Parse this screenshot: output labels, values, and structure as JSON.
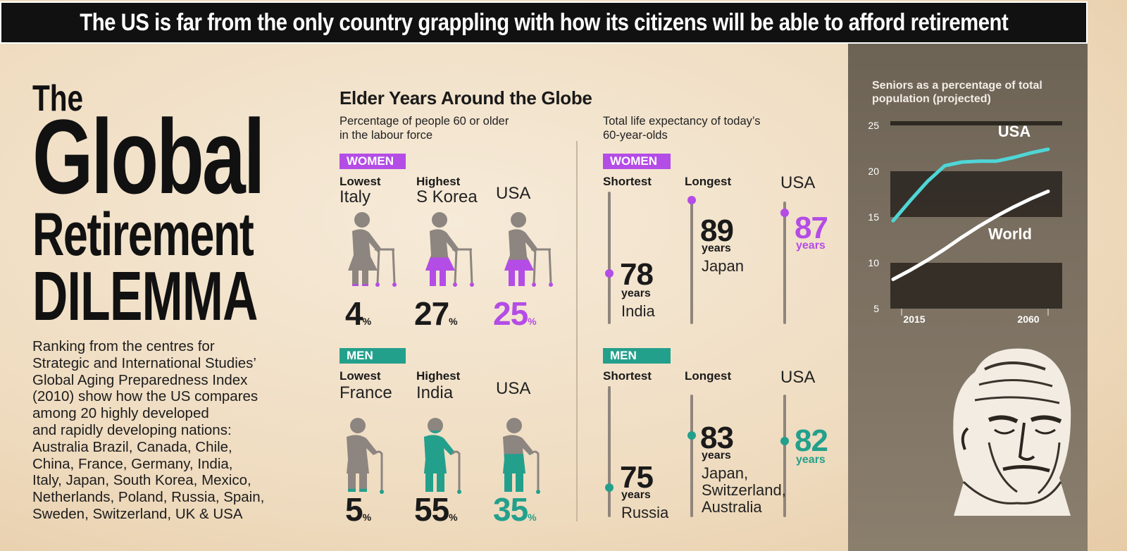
{
  "banner": "The US is far from the only country grappling with how its citizens will be able to afford retirement",
  "title": {
    "line1": "The",
    "line2": "Global",
    "line3": "Retirement",
    "line4": "DILEMMA"
  },
  "intro_lines": [
    "Ranking from the centres for",
    "Strategic and International Studies’",
    "Global Aging Preparedness Index",
    "(2010) show how the US compares",
    "among 20 highly developed",
    "and rapidly developing nations:",
    "Australia  Brazil, Canada, Chile,",
    "China, France, Germany, India,",
    "Italy, Japan, South Korea, Mexico,",
    "Netherlands, Poland, Russia, Spain,",
    "Sweden, Switzerland, UK & USA"
  ],
  "section_title": "Elder Years Around the Globe",
  "labour": {
    "subtitle_1": "Percentage of people 60 or older",
    "subtitle_2": "in the labour force",
    "women": {
      "tag": "WOMEN",
      "cols": [
        {
          "head": "Lowest",
          "country": "Italy",
          "value": "4",
          "unit": "%",
          "fill": 0.04
        },
        {
          "head": "Highest",
          "country": "S Korea",
          "value": "27",
          "unit": "%",
          "fill": 0.27
        },
        {
          "head": "",
          "country": "USA",
          "value": "25",
          "unit": "%",
          "fill": 0.25
        }
      ]
    },
    "men": {
      "tag": "MEN",
      "cols": [
        {
          "head": "Lowest",
          "country": "France",
          "value": "5",
          "unit": "%",
          "fill": 0.05
        },
        {
          "head": "Highest",
          "country": "India",
          "value": "55",
          "unit": "%",
          "fill": 0.55
        },
        {
          "head": "",
          "country": "USA",
          "value": "35",
          "unit": "%",
          "fill": 0.35
        }
      ]
    }
  },
  "life": {
    "subtitle_1": "Total life expectancy of today’s",
    "subtitle_2": "60-year-olds",
    "women": {
      "tag": "WOMEN",
      "cols": [
        {
          "head": "Shortest",
          "value": "78",
          "unit": "years",
          "place": [
            "India"
          ]
        },
        {
          "head": "Longest",
          "value": "89",
          "unit": "years",
          "place": [
            "Japan"
          ]
        },
        {
          "head": "USA",
          "value": "87",
          "unit": "years",
          "place": []
        }
      ]
    },
    "men": {
      "tag": "MEN",
      "cols": [
        {
          "head": "Shortest",
          "value": "75",
          "unit": "years",
          "place": [
            "Russia"
          ]
        },
        {
          "head": "Longest",
          "value": "83",
          "unit": "years",
          "place": [
            "Japan,",
            "Switzerland,",
            "Australia"
          ]
        },
        {
          "head": "USA",
          "value": "82",
          "unit": "years",
          "place": []
        }
      ]
    }
  },
  "colors": {
    "women": "#b44ce6",
    "men": "#23a08c",
    "figure_grey": "#8d8580",
    "usa_line": "#4fd6d6",
    "world_line": "#ffffff"
  },
  "chart_data": {
    "type": "line",
    "title": "Seniors as a percentage of total population (projected)",
    "x_ticks": [
      "2015",
      "2060"
    ],
    "x": [
      2015,
      2020,
      2025,
      2030,
      2035,
      2040,
      2045,
      2050,
      2055,
      2060
    ],
    "series": [
      {
        "name": "USA",
        "values": [
          14.6,
          16.8,
          18.9,
          20.6,
          21.0,
          21.1,
          21.1,
          21.5,
          22.0,
          22.4
        ]
      },
      {
        "name": "World",
        "values": [
          8.2,
          9.2,
          10.3,
          11.5,
          12.8,
          14.0,
          15.1,
          16.1,
          17.0,
          17.8
        ]
      }
    ],
    "y_ticks": [
      5,
      10,
      15,
      20,
      25
    ],
    "ylim": [
      5,
      25
    ],
    "xlim": [
      2015,
      2060
    ]
  }
}
